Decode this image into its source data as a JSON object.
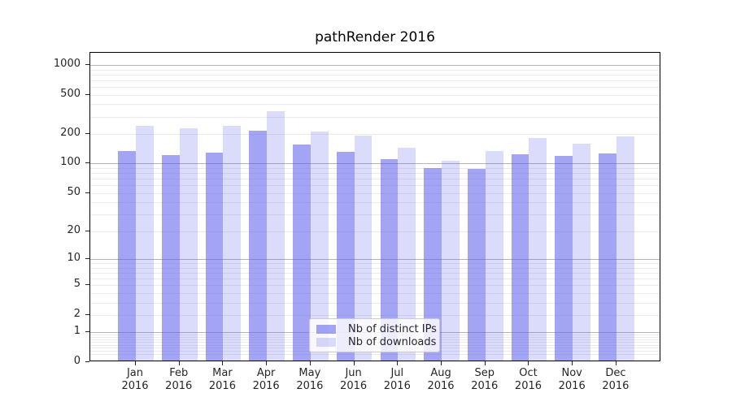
{
  "chart_data": {
    "type": "bar",
    "title": "pathRender 2016",
    "categories": [
      "Jan 2016",
      "Feb 2016",
      "Mar 2016",
      "Apr 2016",
      "May 2016",
      "Jun 2016",
      "Jul 2016",
      "Aug 2016",
      "Sep 2016",
      "Oct 2016",
      "Nov 2016",
      "Dec 2016"
    ],
    "series": [
      {
        "name": "Nb of distinct IPs",
        "values": [
          130,
          118,
          124,
          208,
          150,
          128,
          107,
          87,
          85,
          119,
          115,
          123
        ],
        "base_color": "#5a5aeb",
        "fill": "rgba(90,90,235,0.55)",
        "solid_equivalent": "#a4a4f4"
      },
      {
        "name": "Nb of downloads",
        "values": [
          232,
          218,
          235,
          330,
          203,
          186,
          140,
          102,
          129,
          174,
          152,
          181
        ],
        "base_color": "#5a5aeb",
        "fill": "rgba(90,90,235,0.22)",
        "solid_equivalent": "#dbdbfb"
      }
    ],
    "y_scale": "log1p",
    "y_tick_labels": [
      "1000",
      "500",
      "200",
      "100",
      "50",
      "20",
      "10",
      "5",
      "2",
      "1",
      "0"
    ],
    "y_tick_values": [
      1000,
      500,
      200,
      100,
      50,
      20,
      10,
      5,
      2,
      1,
      0
    ],
    "ylim": [
      0,
      1330
    ],
    "grid": {
      "enabled": true,
      "major_values": [
        1,
        10,
        100,
        1000
      ],
      "major_color": "#b4b4b4",
      "minor_color": "#ebebeb"
    },
    "legend": {
      "position": "lower center"
    },
    "axis_color": "#000000"
  }
}
